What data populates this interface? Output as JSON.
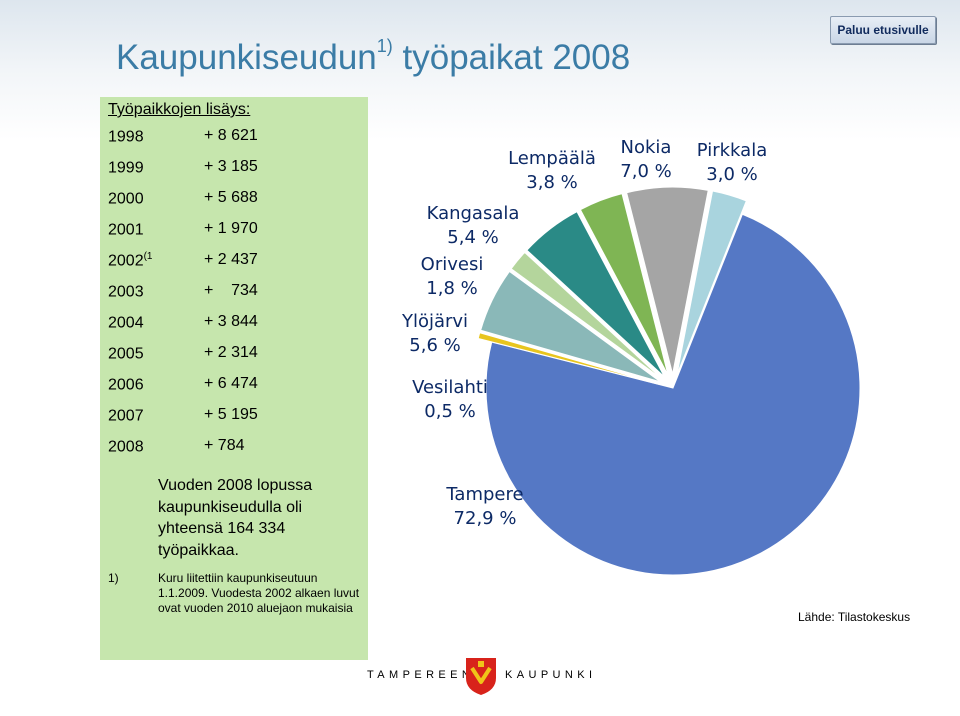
{
  "slide": {
    "title_main": "Kaupunkiseudun",
    "title_sup": "1)",
    "title_rest": "työpaikat 2008",
    "back_button": "Paluu etusivulle"
  },
  "panel": {
    "heading": "Työpaikkojen lisäys:",
    "rows": [
      {
        "year": "1998",
        "sup": "",
        "change": "+ 8 621"
      },
      {
        "year": "1999",
        "sup": "",
        "change": "+ 3 185"
      },
      {
        "year": "2000",
        "sup": "",
        "change": "+ 5 688"
      },
      {
        "year": "2001",
        "sup": "",
        "change": "+ 1 970"
      },
      {
        "year": "2002",
        "sup": "(1",
        "change": "+ 2 437"
      },
      {
        "year": "2003",
        "sup": "",
        "change": "+    734"
      },
      {
        "year": "2004",
        "sup": "",
        "change": "+ 3 844"
      },
      {
        "year": "2005",
        "sup": "",
        "change": "+ 2 314"
      },
      {
        "year": "2006",
        "sup": "",
        "change": "+ 6 474"
      },
      {
        "year": "2007",
        "sup": "",
        "change": "+ 5 195"
      },
      {
        "year": "2008",
        "sup": "",
        "change": "+ 784"
      }
    ],
    "total_text": "Vuoden 2008 lopussa kaupunkiseudulla oli yhteensä 164 334 työpaikkaa.",
    "footnote_marker": "1)",
    "footnote_text": "Kuru liitettiin kaupunkiseutuun 1.1.2009. Vuodesta 2002 alkaen luvut ovat vuoden 2010 aluejaon mukaisia"
  },
  "chart_data": {
    "type": "pie",
    "unit": "%",
    "slices": [
      {
        "name": "Tampere",
        "label": "72,9 %",
        "value": 72.9,
        "color": "#5578c5"
      },
      {
        "name": "Vesilahti",
        "label": "0,5 %",
        "value": 0.5,
        "color": "#e8c51e"
      },
      {
        "name": "Ylöjärvi",
        "label": "5,6 %",
        "value": 5.6,
        "color": "#8ab8b8"
      },
      {
        "name": "Orivesi",
        "label": "1,8 %",
        "value": 1.8,
        "color": "#b4d59c"
      },
      {
        "name": "Kangasala",
        "label": "5,4 %",
        "value": 5.4,
        "color": "#2a8a86"
      },
      {
        "name": "Lempäälä",
        "label": "3,8 %",
        "value": 3.8,
        "color": "#7fb554"
      },
      {
        "name": "Nokia",
        "label": "7,0 %",
        "value": 7.0,
        "color": "#a5a5a5"
      },
      {
        "name": "Pirkkala",
        "label": "3,0 %",
        "value": 3.0,
        "color": "#a9d4de"
      }
    ]
  },
  "source": "Lähde: Tilastokeskus",
  "footer": {
    "left": "TAMPEREEN",
    "right": "KAUPUNKI"
  }
}
